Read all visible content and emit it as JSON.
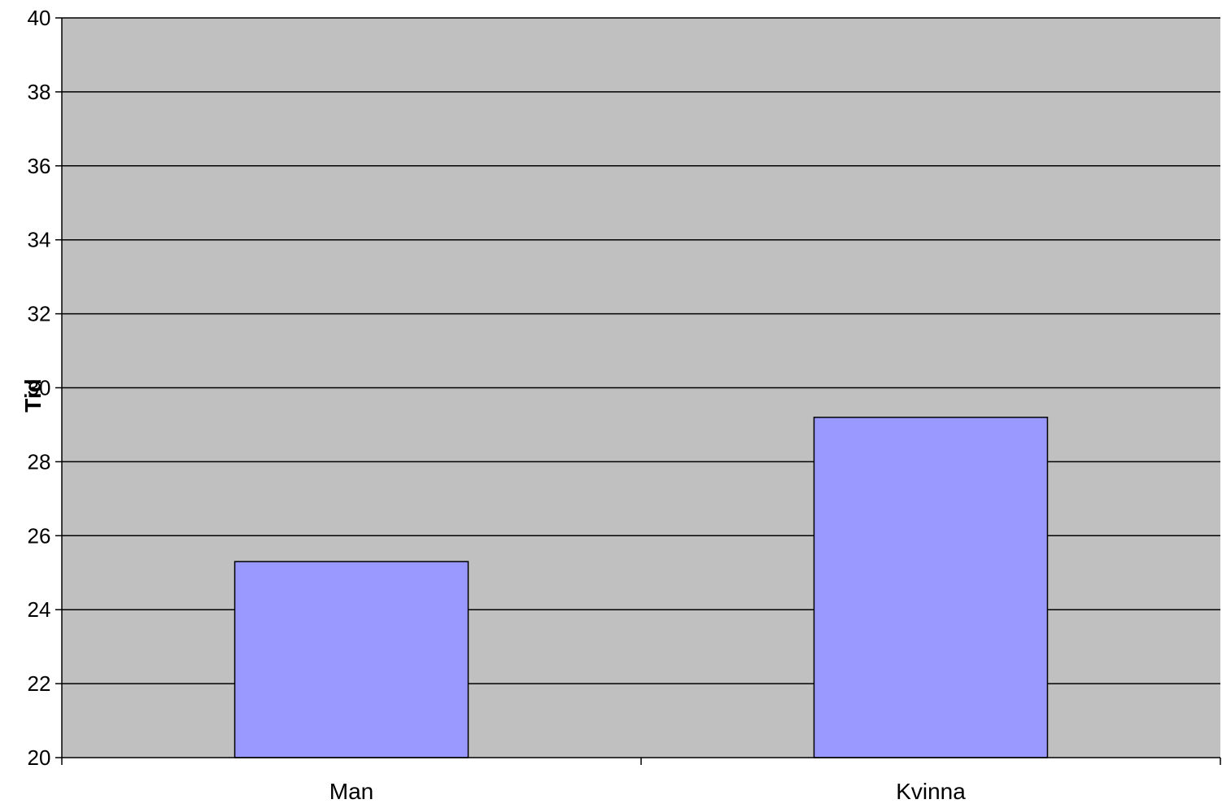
{
  "chart_data": {
    "type": "bar",
    "title": "",
    "xlabel": "",
    "ylabel": "Tid",
    "categories": [
      "Man",
      "Kvinna"
    ],
    "series": [
      {
        "values": [
          25.3,
          29.2
        ],
        "color": "#9999ff"
      }
    ],
    "ylim": [
      20,
      40
    ],
    "yticks": [
      20,
      22,
      24,
      26,
      28,
      30,
      32,
      34,
      36,
      38,
      40
    ],
    "grid": true,
    "legend": "none",
    "plot_background": "#c0c0c0"
  }
}
